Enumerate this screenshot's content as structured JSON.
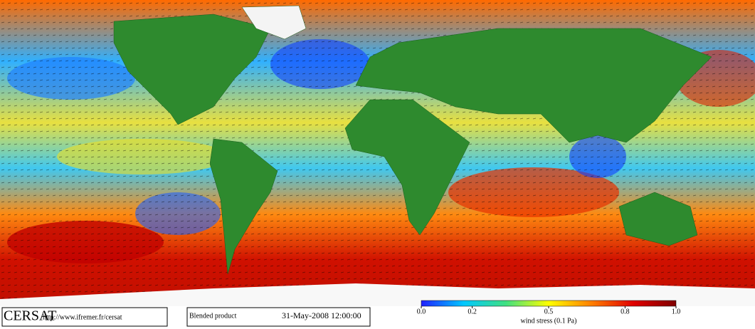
{
  "footer": {
    "logo": "CERSAT",
    "url": "http://www.ifremer.fr/cersat",
    "product": "Blended product",
    "date": "31-May-2008 12:00:00"
  },
  "colorbar": {
    "label": "wind stress (0.1 Pa)",
    "lim": [
      0,
      1
    ],
    "ticks": [
      {
        "value": 0,
        "label": "0.0"
      },
      0.2,
      0.5,
      0.8,
      {
        "value": 1,
        "label": "1.0"
      }
    ],
    "colors": [
      "#2020ff",
      "#00c8ff",
      "#40e080",
      "#ffff00",
      "#ff8000",
      "#e00000",
      "#800000"
    ]
  }
}
